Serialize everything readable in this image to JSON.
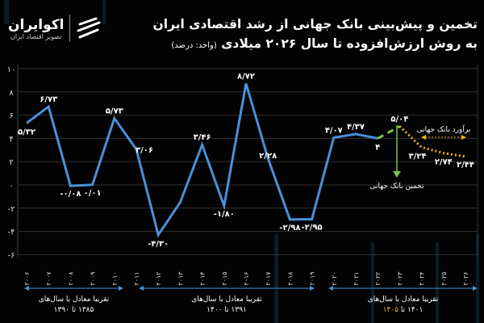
{
  "header": {
    "title_line1": "تخمین و پیش‌بینی بانک جهانی از رشد اقتصادی ایران",
    "title_line2": "به روش ارزش‌افزوده تا سال ۲۰۲۶ میلادی",
    "unit": "(واحد: درصد)"
  },
  "logo": {
    "name": "اکوایران",
    "tagline": "تصویر اقتصاد ایران"
  },
  "chart_data": {
    "type": "line",
    "x": [
      2006,
      2007,
      2008,
      2009,
      2010,
      2011,
      2012,
      2013,
      2014,
      2015,
      2016,
      2017,
      2018,
      2019,
      2020,
      2021,
      2022,
      2023,
      2024,
      2025,
      2026
    ],
    "x_tick_labels": [
      "۲۰۰۶",
      "۲۰۰۷",
      "۲۰۰۸",
      "۲۰۰۹",
      "۲۰۱۰",
      "۲۰۱۱",
      "۲۰۱۲",
      "۲۰۱۳",
      "۲۰۱۴",
      "۲۰۱۵",
      "۲۰۱۶",
      "۲۰۱۷",
      "۲۰۱۸",
      "۲۰۱۹",
      "۲۰۲۰",
      "۲۰۲۱",
      "۲۰۲۲",
      "۲۰۲۳",
      "۲۰۲۴",
      "۲۰۲۵",
      "۲۰۲۶"
    ],
    "series": [
      {
        "kind": "actual",
        "color": "#4a90d9",
        "x": [
          2006,
          2007,
          2008,
          2009,
          2010,
          2011,
          2012,
          2013,
          2014,
          2015,
          2016,
          2017,
          2018,
          2019,
          2020,
          2021,
          2022
        ],
        "values": [
          5.32,
          6.73,
          -0.08,
          0.01,
          5.73,
          3.06,
          -4.3,
          -1.5,
          3.46,
          -1.8,
          8.72,
          2.28,
          -2.98,
          -2.95,
          4.07,
          4.37,
          4
        ],
        "labels": [
          "۵/۳۲",
          "۶/۷۳",
          "-۰/۰۸",
          "۰/۰۱",
          "۵/۷۳",
          "۳/۰۶",
          "-۴/۳۰",
          "",
          "۳/۴۶",
          "-۱/۸۰",
          "۸/۷۲",
          "۲/۲۸",
          "-۲/۹۸",
          "-۲/۹۵",
          "۴/۰۷",
          "۴/۳۷",
          "۴"
        ]
      },
      {
        "kind": "estimate",
        "color": "#7dc242",
        "x": [
          2022,
          2023
        ],
        "values": [
          4,
          5.04
        ],
        "labels": [
          "",
          "۵/۰۴"
        ]
      },
      {
        "kind": "forecast",
        "color": "#f0b400",
        "x": [
          2023,
          2024,
          2025,
          2026
        ],
        "values": [
          5.04,
          3.24,
          2.74,
          2.44
        ],
        "labels": [
          "",
          "۳/۲۴",
          "۲/۷۴",
          "۲/۴۴"
        ]
      }
    ],
    "yticks": [
      10,
      8,
      6,
      4,
      2,
      0,
      -2,
      -4,
      -6
    ],
    "ytick_labels": [
      "۱۰",
      "۸",
      "۶",
      "۴",
      "۲",
      "۰",
      "-۲",
      "-۴",
      "-۶"
    ],
    "ylim": [
      -6,
      10
    ],
    "grid": true,
    "annotations": {
      "estimate": "تخمین بانک جهانی",
      "forecast": "برآورد بانک جهانی"
    },
    "periods": [
      {
        "label": "تقریبا معادل با سال‌های",
        "range_a": "۱۳۸۵",
        "to": "تا",
        "range_b": "۱۳۹۰"
      },
      {
        "label": "تقریبا معادل با سال‌های",
        "range_a": "۱۳۹۱",
        "to": "تا",
        "range_b": "۱۴۰۰"
      },
      {
        "label": "تقریبا معادل با سال‌های",
        "range_a": "۱۴۰۱",
        "to": "تا",
        "range_b": "۱۴۰۵",
        "highlight": "#f0b400"
      }
    ]
  }
}
